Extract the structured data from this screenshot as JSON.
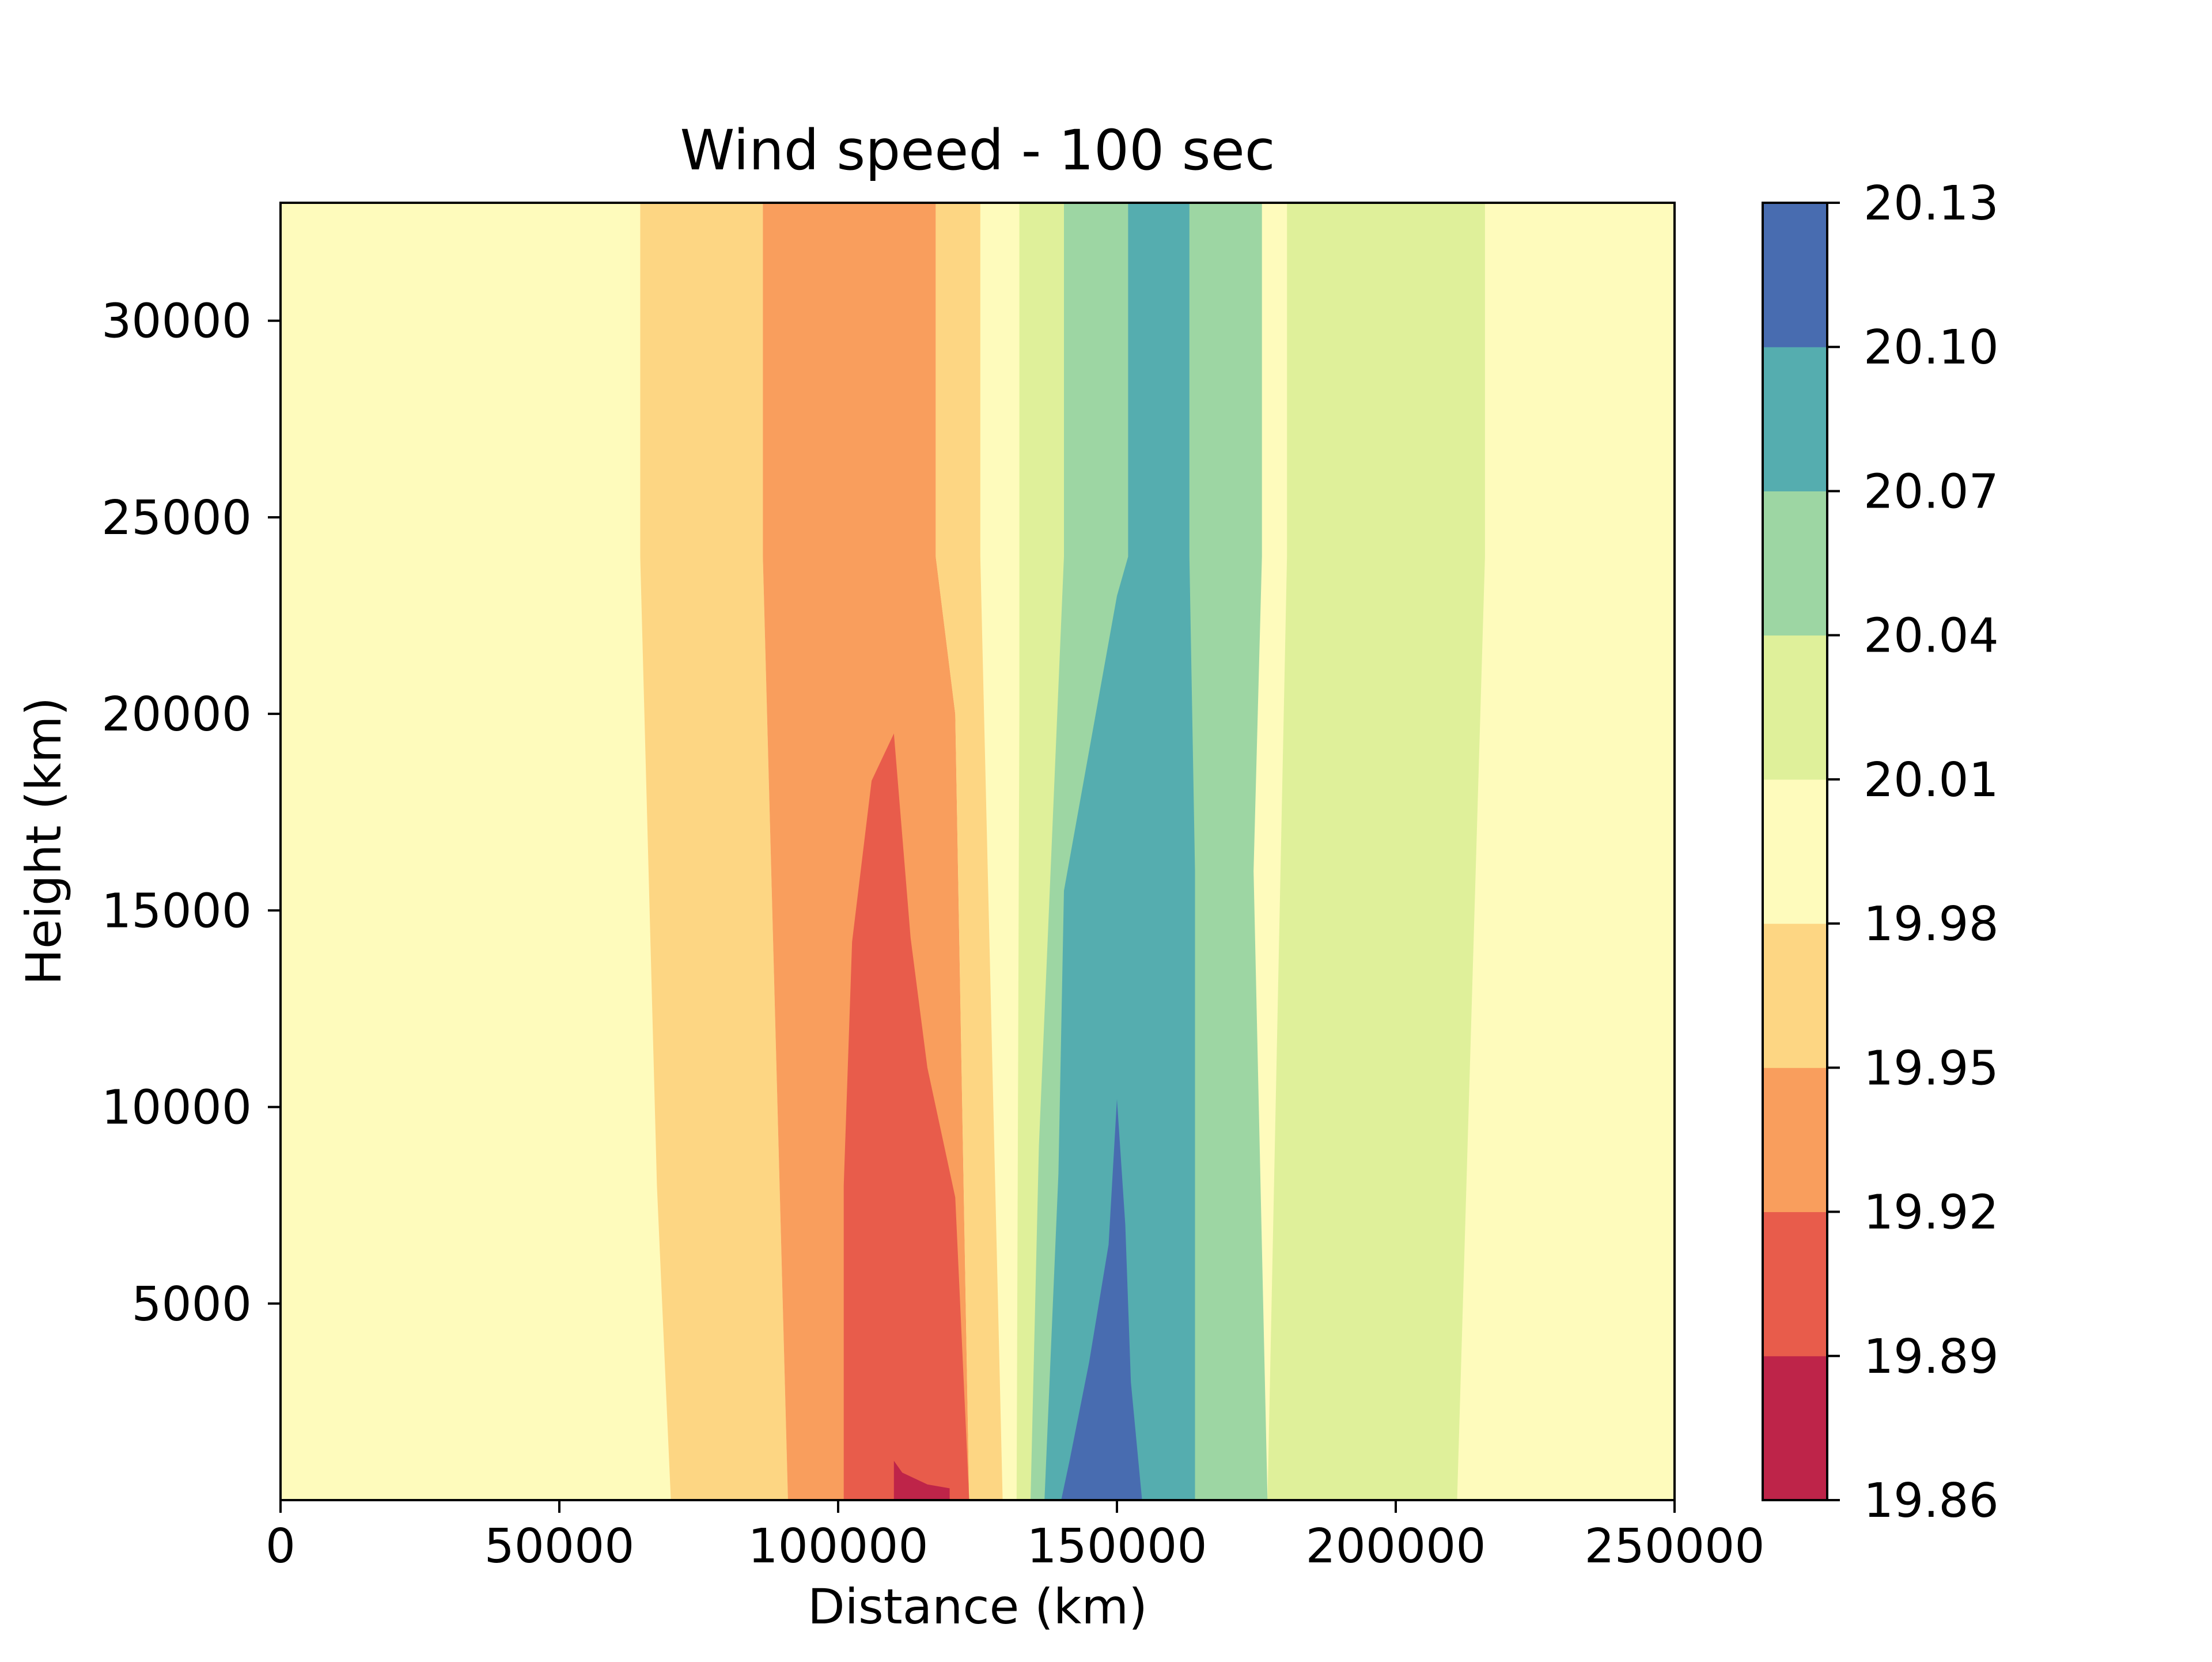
{
  "chart_data": {
    "type": "contourf",
    "title": "Wind speed - 100 sec",
    "xlabel": "Distance (km)",
    "ylabel": "Height (km)",
    "xlim": [
      0,
      250000
    ],
    "ylim": [
      0,
      33000
    ],
    "x_ticks": [
      0,
      50000,
      100000,
      150000,
      200000,
      250000
    ],
    "x_tick_labels": [
      "0",
      "50000",
      "100000",
      "150000",
      "200000",
      "250000"
    ],
    "y_ticks": [
      5000,
      10000,
      15000,
      20000,
      25000,
      30000
    ],
    "y_tick_labels": [
      "5000",
      "10000",
      "15000",
      "20000",
      "25000",
      "30000"
    ],
    "colorbar": {
      "levels": [
        19.86,
        19.89,
        19.92,
        19.95,
        19.98,
        20.01,
        20.04,
        20.07,
        20.1,
        20.13
      ],
      "level_labels": [
        "19.86",
        "19.89",
        "19.92",
        "19.95",
        "19.98",
        "20.01",
        "20.04",
        "20.07",
        "20.10",
        "20.13"
      ],
      "colors": [
        "#be2449",
        "#e85c4b",
        "#f99e5d",
        "#fdd683",
        "#fefbbc",
        "#dff09a",
        "#9dd6a3",
        "#55adaf",
        "#486cb0"
      ]
    },
    "background_color": "#fefbbc",
    "regions": [
      {
        "level_index": 3,
        "polygon": [
          [
            64500,
            33000
          ],
          [
            86500,
            33000
          ],
          [
            86500,
            24000
          ],
          [
            91000,
            0
          ],
          [
            70000,
            0
          ],
          [
            67500,
            8000
          ],
          [
            64500,
            24000
          ]
        ]
      },
      {
        "level_index": 2,
        "polygon": [
          [
            86500,
            33000
          ],
          [
            117500,
            33000
          ],
          [
            117500,
            24000
          ],
          [
            121000,
            20000
          ],
          [
            123500,
            0
          ],
          [
            91000,
            0
          ],
          [
            86500,
            24000
          ]
        ]
      },
      {
        "level_index": 3,
        "polygon": [
          [
            117500,
            33000
          ],
          [
            125500,
            33000
          ],
          [
            125500,
            24000
          ],
          [
            129500,
            0
          ],
          [
            123500,
            0
          ],
          [
            121000,
            20000
          ],
          [
            117500,
            24000
          ]
        ]
      },
      {
        "level_index": 1,
        "polygon": [
          [
            110000,
            19500
          ],
          [
            106000,
            18300
          ],
          [
            102500,
            14200
          ],
          [
            101000,
            8000
          ],
          [
            101000,
            0
          ],
          [
            123500,
            0
          ],
          [
            121000,
            7700
          ],
          [
            116000,
            11000
          ],
          [
            113000,
            14300
          ]
        ]
      },
      {
        "level_index": 0,
        "polygon": [
          [
            110000,
            1000
          ],
          [
            111500,
            700
          ],
          [
            116000,
            400
          ],
          [
            120000,
            300
          ],
          [
            120000,
            0
          ],
          [
            110000,
            0
          ]
        ]
      },
      {
        "level_index": 5,
        "polygon": [
          [
            132500,
            33000
          ],
          [
            140500,
            33000
          ],
          [
            140500,
            24000
          ],
          [
            139500,
            9000
          ],
          [
            137000,
            0
          ],
          [
            132000,
            0
          ],
          [
            132500,
            20000
          ]
        ]
      },
      {
        "level_index": 6,
        "polygon": [
          [
            140500,
            33000
          ],
          [
            176000,
            33000
          ],
          [
            176000,
            24000
          ],
          [
            174500,
            16000
          ],
          [
            177000,
            0
          ],
          [
            134500,
            0
          ],
          [
            136000,
            9000
          ],
          [
            140500,
            24000
          ]
        ]
      },
      {
        "level_index": 7,
        "polygon": [
          [
            152000,
            33000
          ],
          [
            163000,
            33000
          ],
          [
            163000,
            24000
          ],
          [
            164000,
            16000
          ],
          [
            164000,
            0
          ],
          [
            137000,
            0
          ],
          [
            139500,
            8300
          ],
          [
            140500,
            15500
          ],
          [
            150000,
            23000
          ],
          [
            152000,
            24000
          ]
        ]
      },
      {
        "level_index": 8,
        "polygon": [
          [
            150000,
            10200
          ],
          [
            151500,
            7000
          ],
          [
            152500,
            3000
          ],
          [
            154500,
            0
          ],
          [
            140000,
            0
          ],
          [
            141500,
            1000
          ],
          [
            145000,
            3500
          ],
          [
            148500,
            6500
          ]
        ]
      },
      {
        "level_index": 5,
        "polygon": [
          [
            180500,
            33000
          ],
          [
            216000,
            33000
          ],
          [
            216000,
            24000
          ],
          [
            211000,
            0
          ],
          [
            177000,
            0
          ],
          [
            180500,
            24000
          ]
        ]
      }
    ]
  }
}
